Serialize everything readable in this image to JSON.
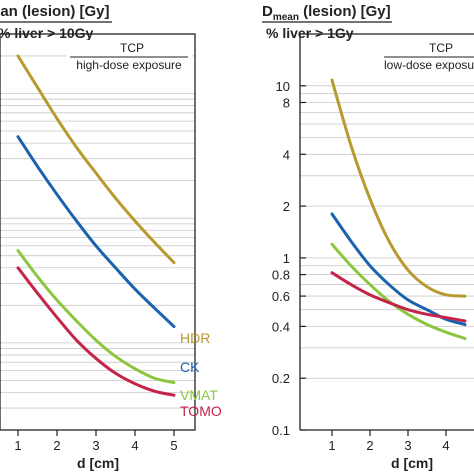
{
  "colors": {
    "HDR": "#b89a2e",
    "CK": "#1a62ad",
    "VMAT": "#8cc63f",
    "TOMO": "#c4234a",
    "grid": "#c8c8c8",
    "axis": "#222222"
  },
  "chart_data": [
    {
      "type": "line",
      "title_top": "ean (lesion) [Gy]",
      "title_bottom": "% liver > 10Gy",
      "annotation_top": "TCP",
      "annotation_bottom": "high-dose exposure",
      "xlabel": "d [cm]",
      "x_ticks": [
        "1",
        "2",
        "3",
        "4",
        "5"
      ],
      "xlim": [
        0.6,
        5.6
      ],
      "yscale": "log",
      "y_ticks": [],
      "grid": "horizontal",
      "series": [
        {
          "name": "HDR",
          "x": [
            1.0,
            1.5,
            2.0,
            2.5,
            3.0,
            3.5,
            4.0,
            4.5,
            5.0
          ],
          "y": [
            20.0,
            11.2,
            6.3,
            3.7,
            2.3,
            1.45,
            0.95,
            0.64,
            0.44
          ]
        },
        {
          "name": "CK",
          "x": [
            1.0,
            1.5,
            2.0,
            2.5,
            3.0,
            3.5,
            4.0,
            4.5,
            5.0
          ],
          "y": [
            4.5,
            2.6,
            1.55,
            0.95,
            0.6,
            0.4,
            0.27,
            0.19,
            0.135
          ]
        },
        {
          "name": "VMAT",
          "x": [
            1.0,
            1.5,
            2.0,
            2.5,
            3.0,
            3.5,
            4.0,
            4.5,
            5.0
          ],
          "y": [
            0.55,
            0.34,
            0.22,
            0.15,
            0.105,
            0.078,
            0.062,
            0.052,
            0.048
          ]
        },
        {
          "name": "TOMO",
          "x": [
            1.0,
            1.5,
            2.0,
            2.5,
            3.0,
            3.5,
            4.0,
            4.5,
            5.0
          ],
          "y": [
            0.4,
            0.25,
            0.16,
            0.105,
            0.075,
            0.057,
            0.047,
            0.041,
            0.038
          ]
        }
      ]
    },
    {
      "type": "line",
      "title_top": "D",
      "title_sub": "mean",
      "title_rest": " (lesion) [Gy]",
      "title_bottom": "% liver > 1Gy",
      "annotation_top": "TCP",
      "annotation_bottom": "low-dose exposu",
      "xlabel": "d [cm]",
      "x_ticks": [
        "1",
        "2",
        "3",
        "4"
      ],
      "xlim": [
        0.6,
        4.6
      ],
      "yscale": "log",
      "ylim": [
        0.1,
        20
      ],
      "y_ticks": [
        "0.1",
        "0.2",
        "0.4",
        "0.6",
        "0.8",
        "1",
        "2",
        "4",
        "8",
        "10"
      ],
      "grid": "horizontal",
      "series": [
        {
          "name": "HDR",
          "x": [
            1.0,
            1.5,
            2.0,
            2.5,
            3.0,
            3.5,
            4.0,
            4.5
          ],
          "y": [
            10.8,
            4.5,
            2.2,
            1.25,
            0.85,
            0.68,
            0.61,
            0.6
          ]
        },
        {
          "name": "CK",
          "x": [
            1.0,
            1.5,
            2.0,
            2.5,
            3.0,
            3.5,
            4.0,
            4.5
          ],
          "y": [
            1.8,
            1.25,
            0.9,
            0.7,
            0.57,
            0.5,
            0.44,
            0.41
          ]
        },
        {
          "name": "VMAT",
          "x": [
            1.0,
            1.5,
            2.0,
            2.5,
            3.0,
            3.5,
            4.0,
            4.5
          ],
          "y": [
            1.2,
            0.9,
            0.7,
            0.56,
            0.47,
            0.41,
            0.37,
            0.34
          ]
        },
        {
          "name": "TOMO",
          "x": [
            1.0,
            1.5,
            2.0,
            2.5,
            3.0,
            3.5,
            4.0,
            4.5
          ],
          "y": [
            0.82,
            0.7,
            0.61,
            0.55,
            0.5,
            0.47,
            0.45,
            0.43
          ]
        }
      ]
    }
  ]
}
